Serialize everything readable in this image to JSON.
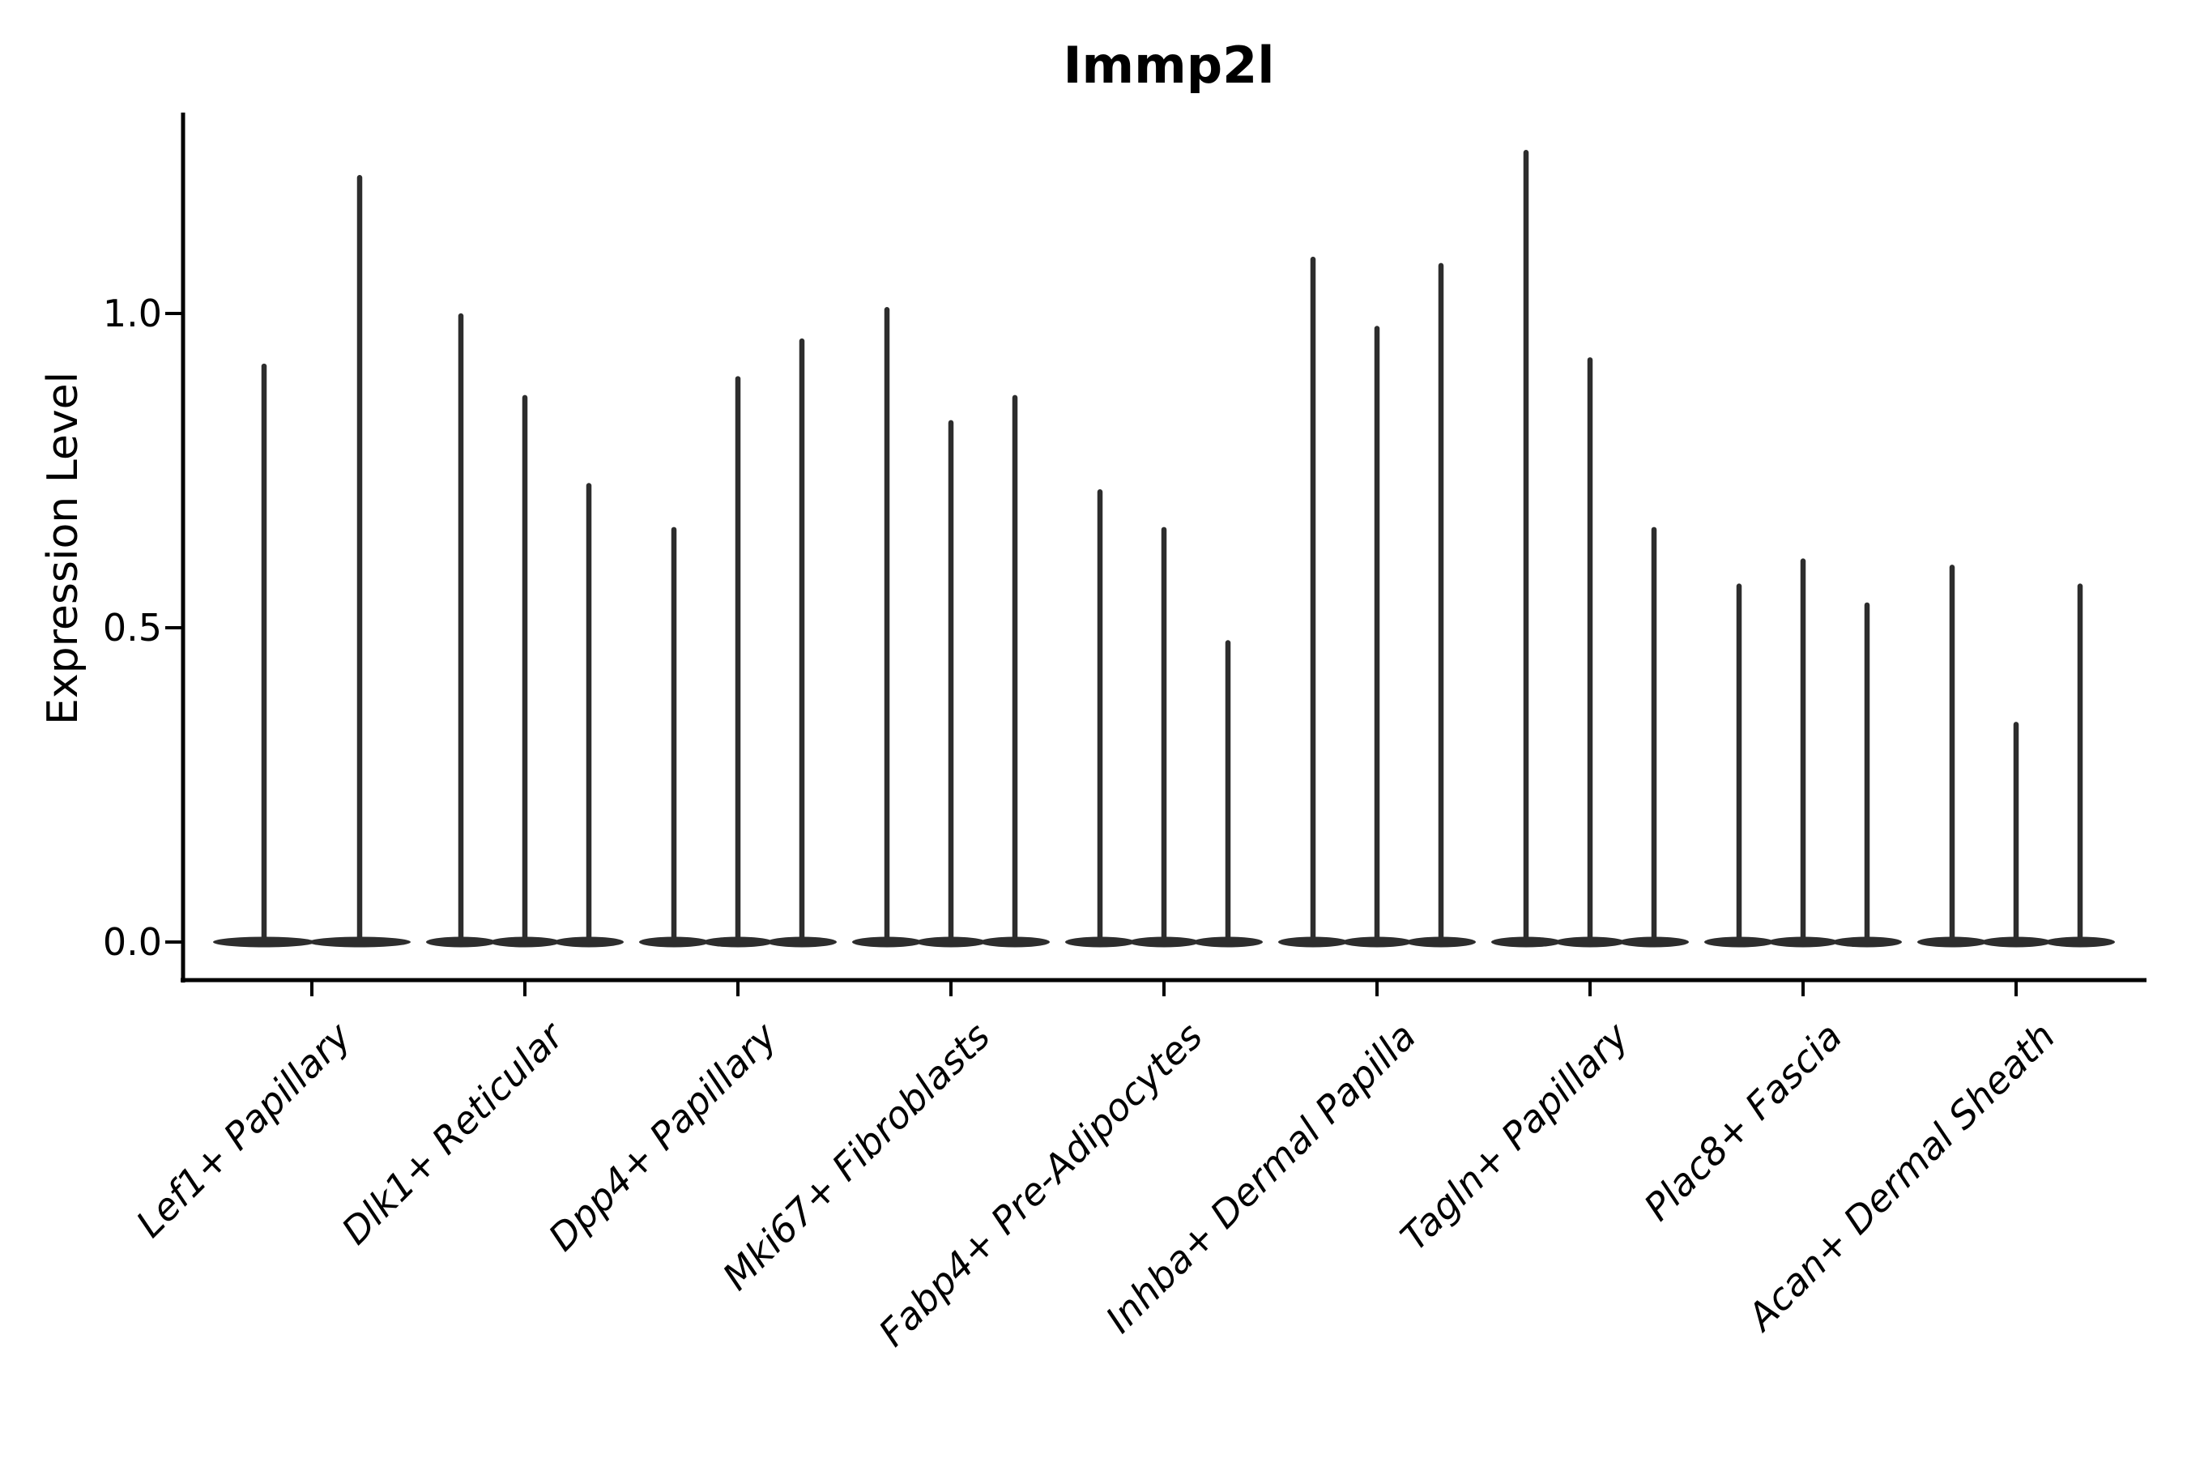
{
  "chart_data": {
    "type": "violin",
    "title": "Immp2l",
    "ylabel": "Expression Level",
    "xlabel": "",
    "grid": false,
    "legend_position": "none",
    "ylim": [
      -0.06,
      1.32
    ],
    "baseline_value": 0.0,
    "yticks": [
      {
        "label": "0.0",
        "value": 0.0
      },
      {
        "label": "0.5",
        "value": 0.5
      },
      {
        "label": "1.0",
        "value": 1.0
      }
    ],
    "categories": [
      "Lef1+ Papillary",
      "Dlk1+ Reticular",
      "Dpp4+ Papillary",
      "Mki67+ Fibroblasts",
      "Fabp4+ Pre-Adipocytes",
      "Inhba+ Dermal Papilla",
      "Tagln+ Papillary",
      "Plac8+ Fascia",
      "Acan+ Dermal Sheath"
    ],
    "series": [
      {
        "category": "Lef1+ Papillary",
        "violin_maxima": [
          0.92,
          1.22
        ]
      },
      {
        "category": "Dlk1+ Reticular",
        "violin_maxima": [
          1.0,
          0.87,
          0.73
        ]
      },
      {
        "category": "Dpp4+ Papillary",
        "violin_maxima": [
          0.66,
          0.9,
          0.96
        ]
      },
      {
        "category": "Mki67+ Fibroblasts",
        "violin_maxima": [
          1.01,
          0.83,
          0.87
        ]
      },
      {
        "category": "Fabp4+ Pre-Adipocytes",
        "violin_maxima": [
          0.72,
          0.66,
          0.48
        ]
      },
      {
        "category": "Inhba+ Dermal Papilla",
        "violin_maxima": [
          1.09,
          0.98,
          1.08
        ]
      },
      {
        "category": "Tagln+ Papillary",
        "violin_maxima": [
          1.26,
          0.93,
          0.66
        ]
      },
      {
        "category": "Plac8+ Fascia",
        "violin_maxima": [
          0.57,
          0.61,
          0.54
        ]
      },
      {
        "category": "Acan+ Dermal Sheath",
        "violin_maxima": [
          0.6,
          0.35,
          0.57
        ]
      }
    ],
    "colors": {
      "violin": "#2d2d2d",
      "axis": "#000000",
      "text": "#000000",
      "background": "#ffffff"
    }
  }
}
